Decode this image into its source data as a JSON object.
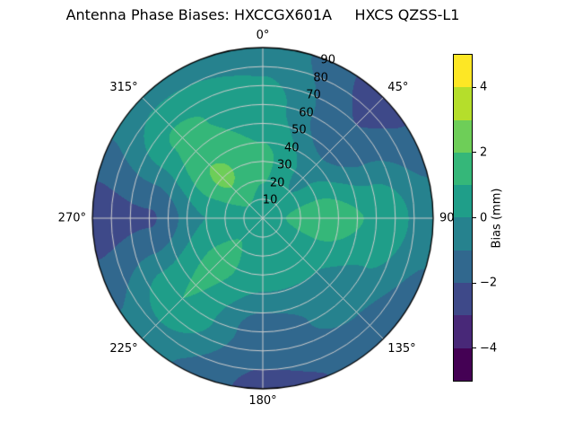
{
  "figure": {
    "title": "Antenna Phase Biases: HXCCGX601A     HXCS QZSS-L1",
    "title_left": "Antenna Phase Biases: HXCCGX601A",
    "title_right": "HXCS QZSS-L1",
    "background": "#ffffff"
  },
  "chart_data": {
    "type": "heatmap",
    "projection": "polar",
    "title": "Antenna Phase Biases: HXCCGX601A     HXCS QZSS-L1",
    "theta_ticks_deg": [
      0,
      45,
      90,
      135,
      180,
      225,
      270,
      315
    ],
    "theta_tick_labels": [
      "0°",
      "45°",
      "90°",
      "135°",
      "180°",
      "225°",
      "270°",
      "315°"
    ],
    "theta_zero_location": "top",
    "theta_direction": "clockwise",
    "r_ticks": [
      10,
      20,
      30,
      40,
      50,
      60,
      70,
      80,
      90
    ],
    "r_tick_labels": [
      "10",
      "20",
      "30",
      "40",
      "50",
      "60",
      "70",
      "80",
      "90"
    ],
    "r_max": 90,
    "r_label_angle_deg": 22.5,
    "grid": true,
    "grid_color": "#cdcdcd",
    "outline_color": "#000000",
    "colorbar": {
      "label": "Bias (mm)",
      "ticks": [
        4,
        2,
        0,
        -2,
        -4
      ],
      "tick_labels": [
        "4",
        "2",
        "0",
        "−2",
        "−4"
      ],
      "vmin": -5,
      "vmax": 5,
      "levels": [
        -5,
        -4,
        -3,
        -2,
        -1,
        0,
        1,
        2,
        3,
        4,
        5
      ],
      "colormap": "viridis",
      "band_colors": [
        "#440154",
        "#482878",
        "#3e4989",
        "#31688e",
        "#26828e",
        "#1f9e89",
        "#35b779",
        "#6ece58",
        "#b5de2b",
        "#fde725"
      ]
    },
    "field": {
      "units": "mm",
      "theta_deg": [
        0,
        45,
        90,
        135,
        180,
        225,
        270,
        315
      ],
      "r": [
        0,
        30,
        60,
        90
      ],
      "values": [
        [
          0.6,
          0.6,
          0.6,
          0.6,
          0.6,
          0.6,
          0.6,
          0.6
        ],
        [
          1.2,
          -0.2,
          1.7,
          0.2,
          0.4,
          1.3,
          0.0,
          2.2
        ],
        [
          0.4,
          -1.9,
          0.9,
          -0.6,
          -1.5,
          1.0,
          -2.1,
          1.2
        ],
        [
          -0.4,
          -2.3,
          -0.6,
          -1.8,
          -2.2,
          -0.7,
          -2.4,
          -0.3
        ]
      ]
    }
  }
}
